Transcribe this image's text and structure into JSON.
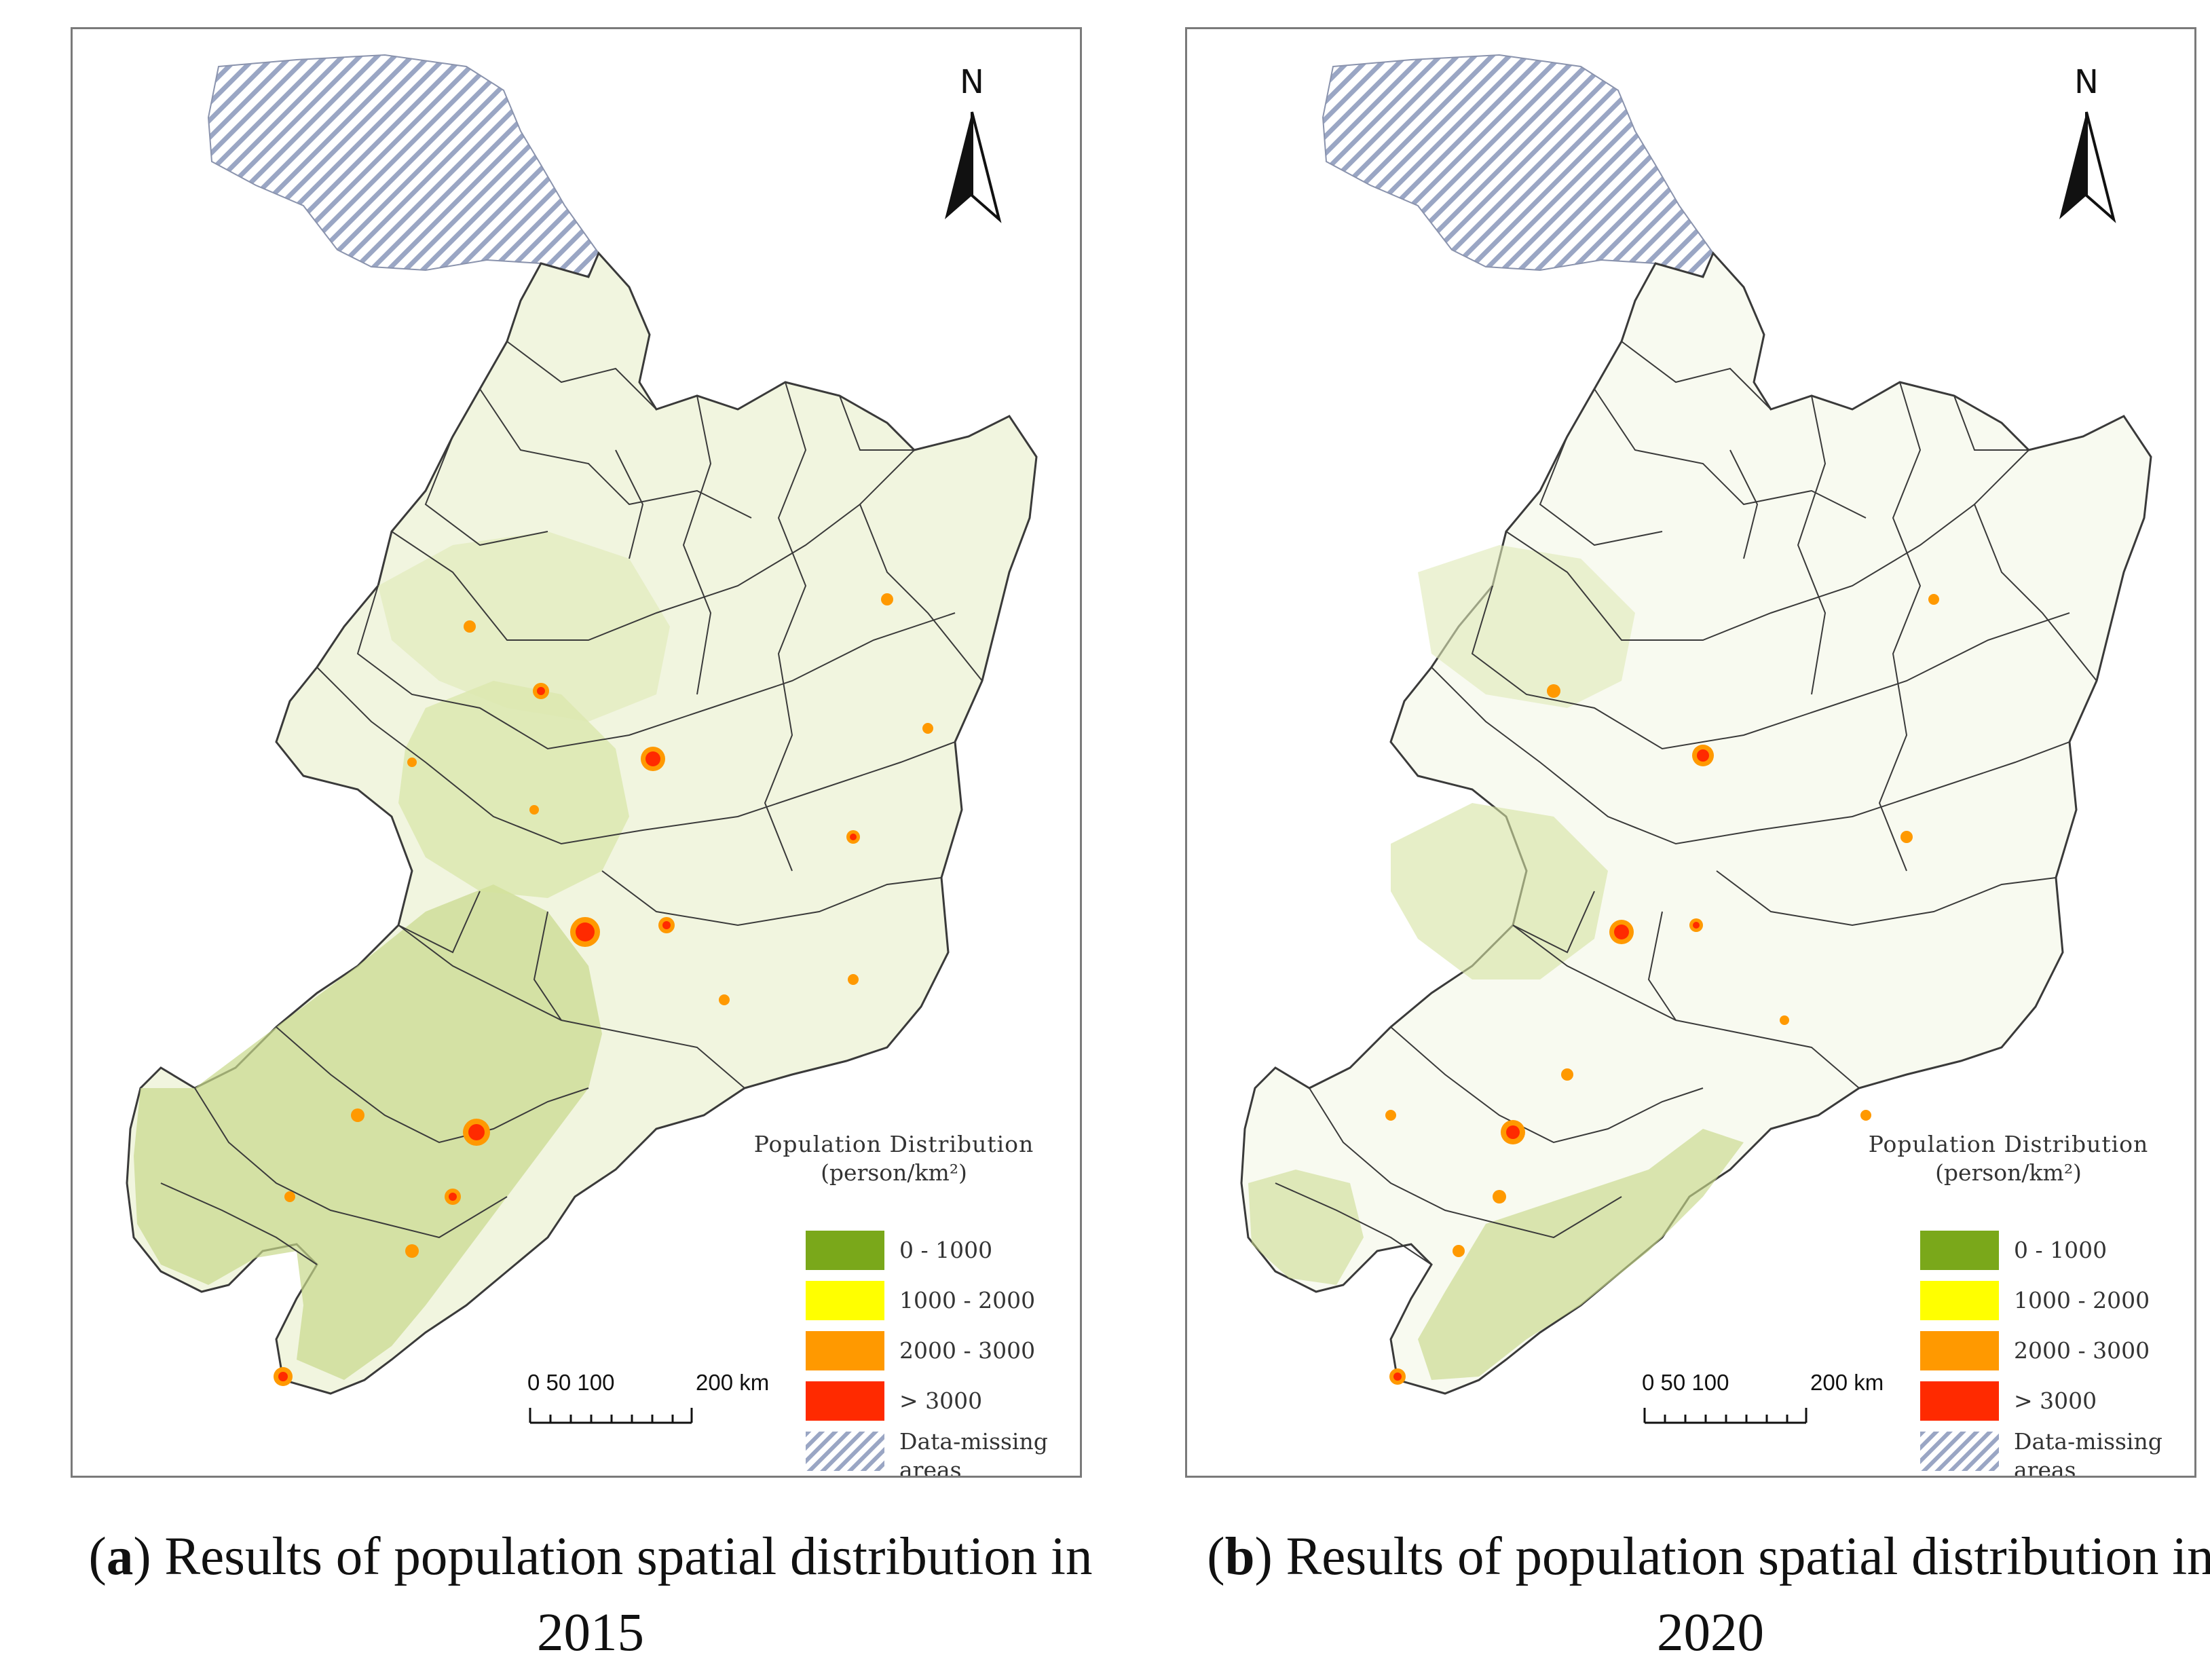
{
  "colors": {
    "class_0_1000": "#7aa81a",
    "class_1000_2000": "#ffff00",
    "class_2000_3000": "#ff9900",
    "class_gt_3000": "#ff2a00",
    "data_missing": "#9aa6c4",
    "boundary": "#3a3a3a",
    "land_tint": "#f3f6e2"
  },
  "icons": [
    "north-arrow-icon",
    "scale-bar-icon",
    "hatch-pattern-icon"
  ],
  "legend": {
    "title": "Population Distribution",
    "unit": "(person/km²)",
    "items": [
      {
        "label": "0 - 1000",
        "color_key": "class_0_1000"
      },
      {
        "label": "1000 - 2000",
        "color_key": "class_1000_2000"
      },
      {
        "label": "2000 - 3000",
        "color_key": "class_2000_3000"
      },
      {
        "label": "> 3000",
        "color_key": "class_gt_3000"
      },
      {
        "label": "Data-missing areas",
        "color_key": "data_missing"
      }
    ]
  },
  "north_label": "N",
  "scale": {
    "ticks_label": "0  50 100",
    "end_label": "200 km"
  },
  "panels": [
    {
      "id": "a",
      "caption_letter": "a",
      "caption_text": "Results of population spatial distribution in 2015",
      "year": "2015"
    },
    {
      "id": "b",
      "caption_letter": "b",
      "caption_text": "Results of population spatial distribution in 2020",
      "year": "2020"
    }
  ]
}
